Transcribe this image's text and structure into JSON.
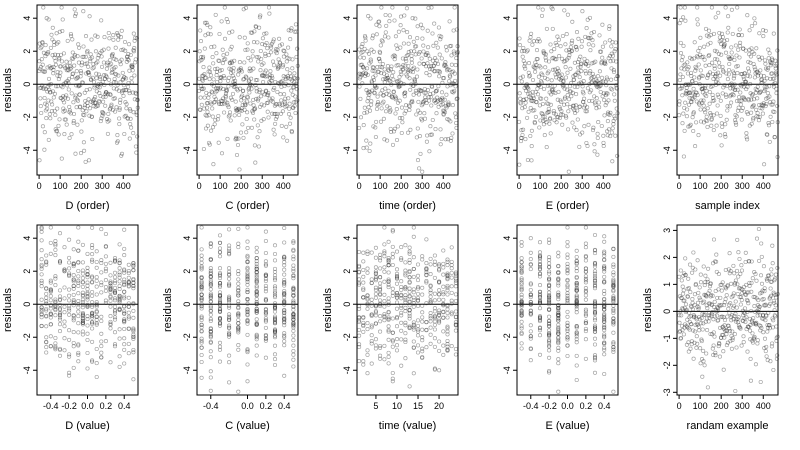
{
  "chart_data": [
    {
      "type": "scatter",
      "xlabel": "D (order)",
      "ylabel": "residuals",
      "xlim": [
        -10,
        470
      ],
      "ylim": [
        -5.5,
        4.8
      ],
      "xticks": [
        0,
        100,
        200,
        300,
        400
      ],
      "yticks": [
        -4,
        -2,
        0,
        2,
        4
      ],
      "hline": 0,
      "n": 470,
      "x_kind": "order"
    },
    {
      "type": "scatter",
      "xlabel": "C (order)",
      "ylabel": "residuals",
      "xlim": [
        -10,
        470
      ],
      "ylim": [
        -5.5,
        4.8
      ],
      "xticks": [
        0,
        100,
        200,
        300,
        400
      ],
      "yticks": [
        -4,
        -2,
        0,
        2,
        4
      ],
      "hline": 0,
      "n": 470,
      "x_kind": "order"
    },
    {
      "type": "scatter",
      "xlabel": "time (order)",
      "ylabel": "residuals",
      "xlim": [
        -10,
        470
      ],
      "ylim": [
        -5.5,
        4.8
      ],
      "xticks": [
        0,
        100,
        200,
        300,
        400
      ],
      "yticks": [
        -4,
        -2,
        0,
        2,
        4
      ],
      "hline": 0,
      "n": 470,
      "x_kind": "order"
    },
    {
      "type": "scatter",
      "xlabel": "E (order)",
      "ylabel": "residuals",
      "xlim": [
        -10,
        470
      ],
      "ylim": [
        -5.5,
        4.8
      ],
      "xticks": [
        0,
        100,
        200,
        300,
        400
      ],
      "yticks": [
        -4,
        -2,
        0,
        2,
        4
      ],
      "hline": 0,
      "n": 470,
      "x_kind": "order"
    },
    {
      "type": "scatter",
      "xlabel": "sample index",
      "ylabel": "residuals",
      "xlim": [
        -10,
        470
      ],
      "ylim": [
        -5.5,
        4.8
      ],
      "xticks": [
        0,
        100,
        200,
        300,
        400
      ],
      "yticks": [
        -4,
        -2,
        0,
        2,
        4
      ],
      "hline": 0,
      "n": 470,
      "x_kind": "order"
    },
    {
      "type": "scatter",
      "xlabel": "D (value)",
      "ylabel": "residuals",
      "xlim": [
        -0.55,
        0.55
      ],
      "ylim": [
        -5.5,
        4.8
      ],
      "xticks": [
        -0.4,
        -0.2,
        0.0,
        0.2,
        0.4
      ],
      "xtick_labels": [
        "-0.4",
        "-0.2",
        "0.0",
        "0.2",
        "0.4"
      ],
      "yticks": [
        -4,
        -2,
        0,
        2,
        4
      ],
      "hline": 0,
      "n": 470,
      "x_kind": "discrete",
      "levels": [
        -0.5,
        -0.45,
        -0.4,
        -0.35,
        -0.3,
        -0.25,
        -0.2,
        -0.15,
        -0.1,
        -0.05,
        0.0,
        0.05,
        0.1,
        0.15,
        0.2,
        0.25,
        0.3,
        0.35,
        0.4,
        0.45,
        0.5
      ]
    },
    {
      "type": "scatter",
      "xlabel": "C (value)",
      "ylabel": "residuals",
      "xlim": [
        -0.55,
        0.55
      ],
      "ylim": [
        -5.5,
        4.8
      ],
      "xticks": [
        -0.4,
        0.0,
        0.2,
        0.4
      ],
      "xtick_labels": [
        "-0.4",
        "0.0",
        "0.2",
        "0.4"
      ],
      "yticks": [
        -4,
        -2,
        0,
        2,
        4
      ],
      "hline": 0,
      "n": 470,
      "x_kind": "discrete",
      "levels": [
        -0.5,
        -0.4,
        -0.3,
        -0.2,
        -0.1,
        0.0,
        0.1,
        0.2,
        0.3,
        0.4,
        0.5
      ]
    },
    {
      "type": "scatter",
      "xlabel": "time (value)",
      "ylabel": "residuals",
      "xlim": [
        0.5,
        24.5
      ],
      "ylim": [
        -5.5,
        4.8
      ],
      "xticks": [
        5,
        10,
        15,
        20
      ],
      "yticks": [
        -4,
        -2,
        0,
        2,
        4
      ],
      "hline": 0,
      "n": 470,
      "x_kind": "discrete",
      "levels": [
        1,
        2,
        3,
        4,
        5,
        6,
        7,
        8,
        9,
        10,
        11,
        12,
        13,
        14,
        15,
        16,
        17,
        18,
        19,
        20,
        21,
        22,
        23,
        24
      ]
    },
    {
      "type": "scatter",
      "xlabel": "E (value)",
      "ylabel": "residuals",
      "xlim": [
        -0.55,
        0.55
      ],
      "ylim": [
        -5.5,
        4.8
      ],
      "xticks": [
        -0.4,
        -0.2,
        0.0,
        0.2,
        0.4
      ],
      "xtick_labels": [
        "-0.4",
        "-0.2",
        "0.0",
        "0.2",
        "0.4"
      ],
      "yticks": [
        -4,
        -2,
        0,
        2,
        4
      ],
      "hline": 0,
      "n": 470,
      "x_kind": "discrete",
      "levels": [
        -0.5,
        -0.4,
        -0.3,
        -0.2,
        -0.1,
        0.0,
        0.1,
        0.2,
        0.3,
        0.4,
        0.5
      ]
    },
    {
      "type": "scatter",
      "xlabel": "randam example",
      "ylabel": "residuals",
      "xlim": [
        -10,
        470
      ],
      "ylim": [
        -3.1,
        3.2
      ],
      "xticks": [
        0,
        100,
        200,
        300,
        400
      ],
      "yticks": [
        -3,
        -2,
        -1,
        0,
        1,
        2,
        3
      ],
      "hline": 0,
      "n": 470,
      "x_kind": "order",
      "noise": "normal"
    }
  ]
}
